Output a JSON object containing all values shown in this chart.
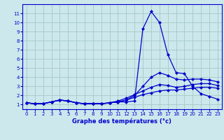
{
  "xlabel": "Graphe des températures (°c)",
  "bg_color": "#cce8ec",
  "grid_color": "#aacccc",
  "line_color": "#0000cc",
  "x_hours": [
    0,
    1,
    2,
    3,
    4,
    5,
    6,
    7,
    8,
    9,
    10,
    11,
    12,
    13,
    14,
    15,
    16,
    17,
    18,
    19,
    20,
    21,
    22,
    23
  ],
  "series": [
    [
      1.2,
      1.1,
      1.1,
      1.3,
      1.5,
      1.4,
      1.2,
      1.1,
      1.1,
      1.1,
      1.2,
      1.3,
      1.3,
      1.4,
      9.3,
      11.2,
      10.0,
      6.5,
      4.5,
      4.4,
      3.0,
      2.2,
      1.9,
      1.6
    ],
    [
      1.2,
      1.1,
      1.1,
      1.3,
      1.5,
      1.4,
      1.2,
      1.1,
      1.1,
      1.1,
      1.2,
      1.3,
      1.5,
      2.0,
      3.0,
      4.0,
      4.5,
      4.2,
      3.8,
      3.7,
      3.8,
      3.8,
      3.7,
      3.5
    ],
    [
      1.2,
      1.1,
      1.1,
      1.3,
      1.5,
      1.4,
      1.2,
      1.1,
      1.1,
      1.1,
      1.2,
      1.4,
      1.7,
      2.1,
      2.5,
      2.9,
      3.2,
      3.1,
      2.9,
      3.0,
      3.2,
      3.3,
      3.3,
      3.1
    ],
    [
      1.2,
      1.1,
      1.1,
      1.3,
      1.5,
      1.4,
      1.2,
      1.1,
      1.1,
      1.1,
      1.2,
      1.3,
      1.5,
      1.8,
      2.1,
      2.3,
      2.5,
      2.6,
      2.6,
      2.7,
      2.8,
      2.9,
      2.9,
      2.8
    ]
  ],
  "ylim": [
    0.5,
    12
  ],
  "xlim": [
    -0.5,
    23.5
  ],
  "yticks": [
    1,
    2,
    3,
    4,
    5,
    6,
    7,
    8,
    9,
    10,
    11
  ],
  "xticks": [
    0,
    1,
    2,
    3,
    4,
    5,
    6,
    7,
    8,
    9,
    10,
    11,
    12,
    13,
    14,
    15,
    16,
    17,
    18,
    19,
    20,
    21,
    22,
    23
  ],
  "marker_size": 2.2,
  "line_width": 0.9,
  "tick_fontsize": 5.0,
  "xlabel_fontsize": 6.0
}
